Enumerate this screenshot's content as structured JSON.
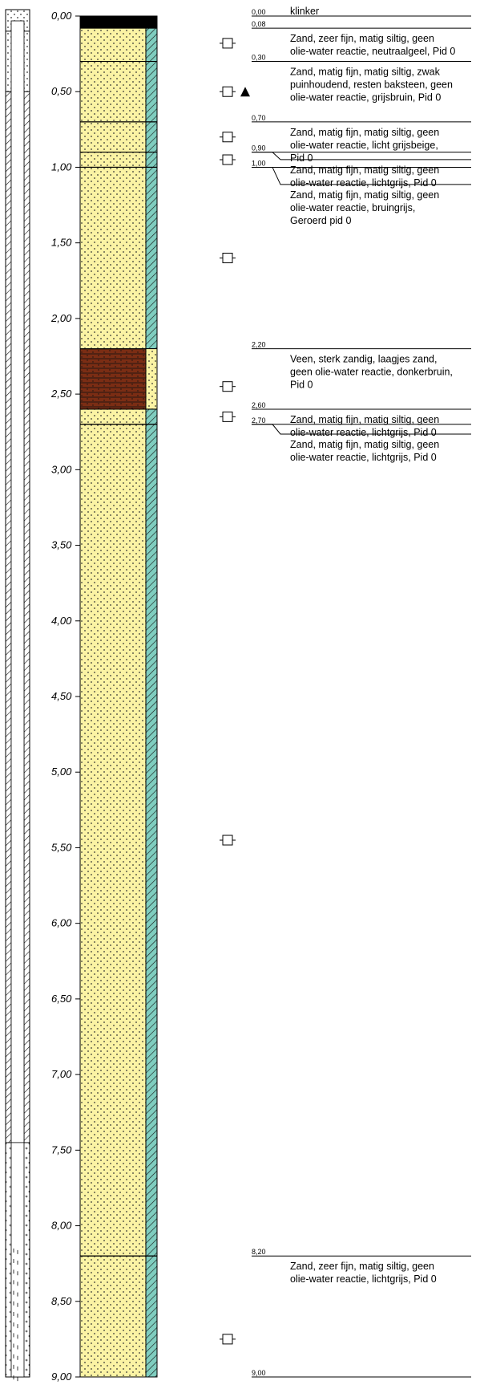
{
  "chart_data": {
    "type": "borehole-log",
    "depth_unit": "m",
    "ylim": [
      0.0,
      9.0
    ],
    "depth_ticks": [
      "0,00",
      "0,50",
      "1,00",
      "1,50",
      "2,00",
      "2,50",
      "3,00",
      "3,50",
      "4,00",
      "4,50",
      "5,00",
      "5,50",
      "6,00",
      "6,50",
      "7,00",
      "7,50",
      "8,00",
      "8,50",
      "9,00"
    ],
    "layers": [
      {
        "top": 0.0,
        "bottom": 0.08,
        "top_label": "0,00",
        "material": "klinker",
        "color": "#000000",
        "lines": [
          "klinker"
        ]
      },
      {
        "top": 0.08,
        "bottom": 0.3,
        "top_label": "0,08",
        "material": "sand",
        "color": "#fbf3a4",
        "lines": [
          "Zand, zeer fijn, matig siltig, geen",
          "olie-water reactie, neutraalgeel, Pid 0"
        ]
      },
      {
        "top": 0.3,
        "bottom": 0.7,
        "top_label": "0,30",
        "material": "sand",
        "color": "#fbf3a4",
        "lines": [
          "Zand, matig fijn, matig siltig, zwak",
          "puinhoudend, resten baksteen, geen",
          "olie-water reactie, grijsbruin, Pid 0"
        ]
      },
      {
        "top": 0.7,
        "bottom": 0.9,
        "top_label": "0,70",
        "material": "sand",
        "color": "#fbf3a4",
        "lines": [
          "Zand, matig fijn, matig siltig, geen",
          "olie-water reactie, licht grijsbeige,",
          "Pid 0"
        ]
      },
      {
        "top": 0.9,
        "bottom": 1.0,
        "top_label": "0,90",
        "material": "sand",
        "color": "#fbf3a4",
        "lines": [
          "Zand, matig fijn, matig siltig, geen",
          "olie-water reactie, lichtgrijs, Pid 0"
        ]
      },
      {
        "top": 1.0,
        "bottom": 2.2,
        "top_label": "1,00",
        "material": "sand",
        "color": "#fbf3a4",
        "lines": [
          "Zand, matig fijn, matig siltig, geen",
          "olie-water reactie, bruingrijs,",
          "Geroerd pid 0"
        ]
      },
      {
        "top": 2.2,
        "bottom": 2.6,
        "top_label": "2,20",
        "material": "peat",
        "color": "#7b2d14",
        "lines": [
          "Veen, sterk zandig, laagjes zand,",
          "geen olie-water reactie, donkerbruin,",
          "Pid 0"
        ]
      },
      {
        "top": 2.6,
        "bottom": 2.7,
        "top_label": "2,60",
        "material": "sand",
        "color": "#fbf3a4",
        "lines": [
          "Zand, matig fijn, matig siltig, geen",
          "olie-water reactie, lichtgrijs, Pid 0"
        ]
      },
      {
        "top": 2.7,
        "bottom": 8.2,
        "top_label": "2,70",
        "material": "sand",
        "color": "#fbf3a4",
        "lines": [
          "Zand, matig fijn, matig siltig, geen",
          "olie-water reactie, lichtgrijs, Pid 0"
        ]
      },
      {
        "top": 8.2,
        "bottom": 9.0,
        "top_label": "8,20",
        "material": "sand",
        "color": "#fbf3a4",
        "lines": [
          "Zand, zeer fijn, matig siltig, geen",
          "olie-water reactie, lichtgrijs, Pid 0"
        ]
      }
    ],
    "bottom_label": "9,00",
    "samples": [
      0.18,
      0.5,
      0.8,
      0.95,
      1.6,
      2.45,
      2.65,
      5.45,
      8.75
    ],
    "groundwater_depth": 0.5,
    "well": {
      "blank_casing": [
        0.0,
        7.45
      ],
      "screen": [
        7.45,
        9.0
      ],
      "sand_top_fill": [
        0.0,
        0.1
      ],
      "seal": [
        0.1,
        0.5
      ]
    },
    "colors": {
      "sand": "#fbf3a4",
      "peat": "#7b2d14",
      "klinker": "#000000",
      "side_strip": "#7fcdbf"
    }
  }
}
